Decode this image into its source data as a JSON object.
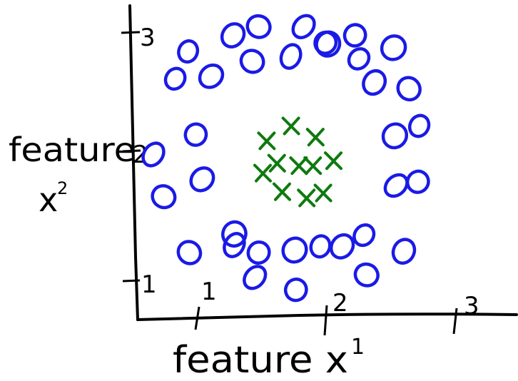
{
  "chart_data": {
    "type": "scatter",
    "xlabel_text": "feature x",
    "xlabel_sup": "1",
    "ylabel_line1": "feature",
    "ylabel_line2": "x",
    "ylabel_sup": "2",
    "x_ticks": [
      "1",
      "2",
      "3"
    ],
    "y_ticks": [
      "1",
      "2",
      "3"
    ],
    "xlim": [
      0.5,
      3.5
    ],
    "ylim": [
      0.6,
      3.3
    ],
    "grid": false,
    "series": [
      {
        "marker": "o",
        "color": "#1a1ae6",
        "points": [
          [
            0.92,
            2.85
          ],
          [
            1.27,
            2.98
          ],
          [
            1.47,
            3.05
          ],
          [
            1.82,
            3.05
          ],
          [
            2.22,
            2.98
          ],
          [
            2.52,
            2.88
          ],
          [
            0.82,
            2.63
          ],
          [
            1.1,
            2.65
          ],
          [
            1.42,
            2.77
          ],
          [
            1.72,
            2.81
          ],
          [
            1.99,
            2.92
          ],
          [
            2.01,
            2.91
          ],
          [
            2.25,
            2.79
          ],
          [
            2.37,
            2.6
          ],
          [
            2.64,
            2.55
          ],
          [
            0.65,
            2.02
          ],
          [
            0.98,
            2.18
          ],
          [
            2.53,
            2.17
          ],
          [
            2.72,
            2.25
          ],
          [
            1.03,
            1.82
          ],
          [
            0.73,
            1.68
          ],
          [
            2.54,
            1.77
          ],
          [
            2.71,
            1.8
          ],
          [
            1.28,
            1.38
          ],
          [
            2.29,
            1.37
          ],
          [
            2.6,
            1.24
          ],
          [
            0.93,
            1.23
          ],
          [
            1.28,
            1.29
          ],
          [
            1.47,
            1.23
          ],
          [
            1.75,
            1.25
          ],
          [
            1.95,
            1.28
          ],
          [
            2.12,
            1.28
          ],
          [
            2.31,
            1.05
          ],
          [
            1.44,
            1.03
          ],
          [
            1.76,
            0.93
          ]
        ]
      },
      {
        "marker": "x",
        "color": "#0e7a0e",
        "points": [
          [
            1.72,
            2.25
          ],
          [
            1.91,
            2.16
          ],
          [
            1.53,
            2.13
          ],
          [
            1.61,
            1.95
          ],
          [
            1.78,
            1.93
          ],
          [
            1.89,
            1.93
          ],
          [
            2.05,
            1.97
          ],
          [
            1.5,
            1.87
          ],
          [
            1.65,
            1.72
          ],
          [
            1.84,
            1.67
          ],
          [
            1.97,
            1.71
          ]
        ]
      }
    ]
  }
}
